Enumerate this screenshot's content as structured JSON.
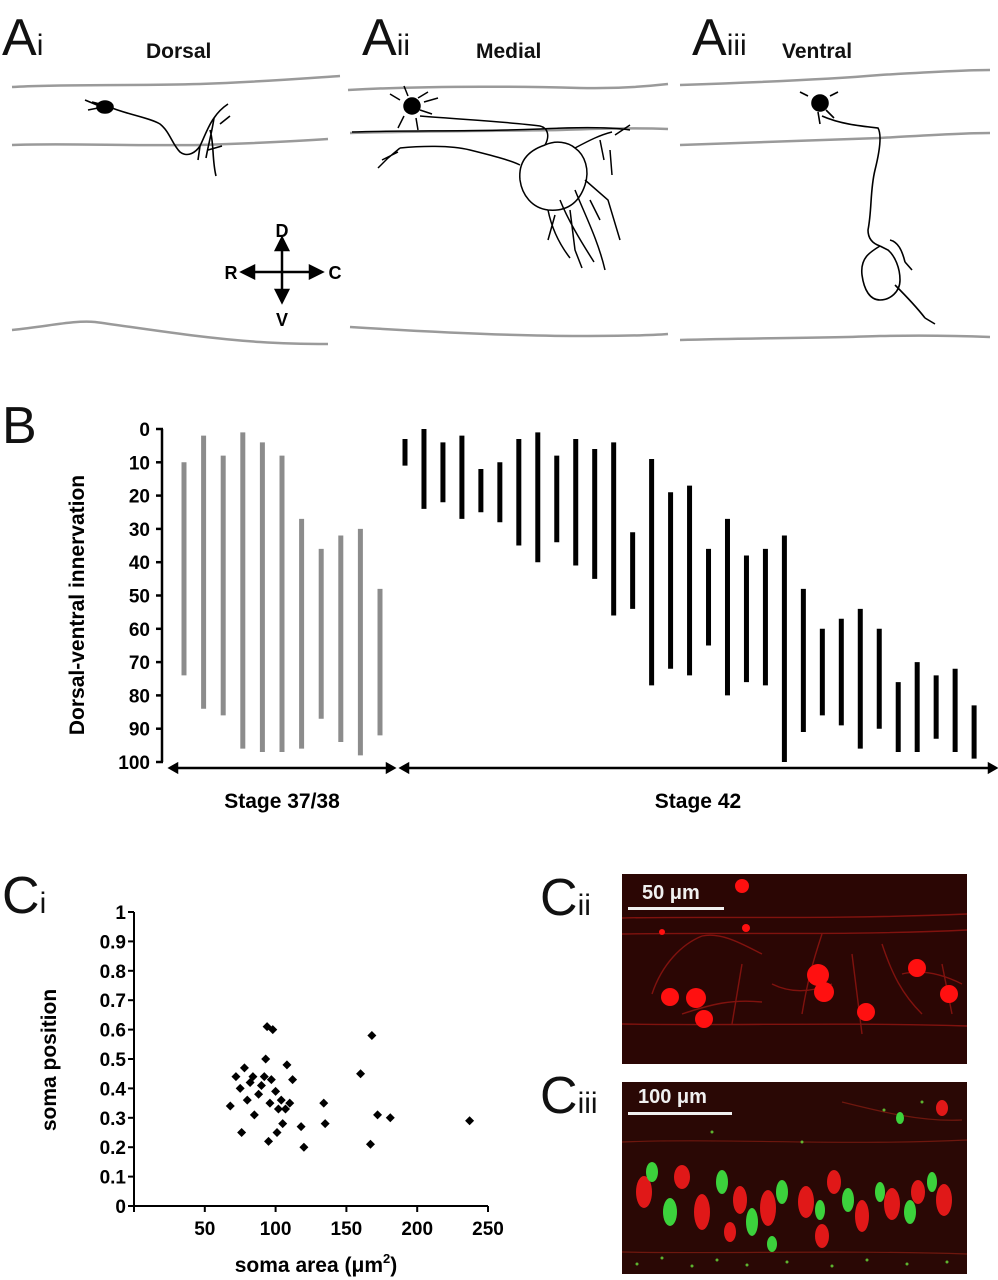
{
  "panel_a": {
    "letters": [
      {
        "main": "A",
        "sub": "i"
      },
      {
        "main": "A",
        "sub": "ii"
      },
      {
        "main": "A",
        "sub": "iii"
      }
    ],
    "titles": [
      "Dorsal",
      "Medial",
      "Ventral"
    ],
    "compass": {
      "up": "D",
      "down": "V",
      "left": "R",
      "right": "C"
    },
    "colors": {
      "boundary": "#9a9a9a",
      "neuron": "#000000"
    }
  },
  "panel_b": {
    "letter": "B",
    "ylabel": "Dorsal-ventral innervation",
    "group_labels": [
      "Stage 37/38",
      "Stage 42"
    ],
    "colors": {
      "stage_37_38": "#8c8c8c",
      "stage_42": "#000000"
    }
  },
  "panel_c": {
    "letters": [
      {
        "main": "C",
        "sub": "i"
      },
      {
        "main": "C",
        "sub": "ii"
      },
      {
        "main": "C",
        "sub": "iii"
      }
    ],
    "scale_labels": [
      "50 μm",
      "100 μm"
    ],
    "xlabel_prefix": "soma area (μm",
    "xlabel_sup": "2",
    "xlabel_suffix": ")",
    "ylabel": "soma position"
  },
  "chart_data": [
    {
      "type": "range-bar",
      "ylabel": "Dorsal-ventral innervation",
      "ylim": [
        0,
        100
      ],
      "y_inverted": true,
      "yticks": [
        "0",
        "10",
        "20",
        "30",
        "40",
        "50",
        "60",
        "70",
        "80",
        "90",
        "100"
      ],
      "series": [
        {
          "name": "Stage 37/38",
          "color": "#8c8c8c",
          "ranges": [
            [
              10,
              74
            ],
            [
              2,
              84
            ],
            [
              8,
              86
            ],
            [
              1,
              96
            ],
            [
              4,
              97
            ],
            [
              8,
              97
            ],
            [
              27,
              96
            ],
            [
              36,
              87
            ],
            [
              32,
              94
            ],
            [
              30,
              98
            ],
            [
              48,
              92
            ]
          ]
        },
        {
          "name": "Stage 42",
          "color": "#000000",
          "ranges": [
            [
              3,
              11
            ],
            [
              0,
              24
            ],
            [
              4,
              22
            ],
            [
              2,
              27
            ],
            [
              12,
              25
            ],
            [
              10,
              28
            ],
            [
              3,
              35
            ],
            [
              1,
              40
            ],
            [
              8,
              34
            ],
            [
              3,
              41
            ],
            [
              6,
              45
            ],
            [
              4,
              56
            ],
            [
              31,
              54
            ],
            [
              9,
              77
            ],
            [
              19,
              72
            ],
            [
              17,
              74
            ],
            [
              36,
              65
            ],
            [
              27,
              80
            ],
            [
              38,
              76
            ],
            [
              36,
              77
            ],
            [
              32,
              100
            ],
            [
              48,
              91
            ],
            [
              60,
              86
            ],
            [
              57,
              89
            ],
            [
              54,
              96
            ],
            [
              60,
              90
            ],
            [
              76,
              97
            ],
            [
              70,
              97
            ],
            [
              74,
              93
            ],
            [
              72,
              97
            ],
            [
              83,
              99
            ]
          ]
        }
      ]
    },
    {
      "type": "scatter",
      "xlabel": "soma area (μm²)",
      "ylabel": "soma position",
      "xlim": [
        0,
        250
      ],
      "ylim": [
        0,
        1
      ],
      "xticks": [
        "50",
        "100",
        "150",
        "200",
        "250"
      ],
      "yticks": [
        "0",
        "0.1",
        "0.2",
        "0.3",
        "0.4",
        "0.5",
        "0.6",
        "0.7",
        "0.8",
        "0.9",
        "1"
      ],
      "points": [
        [
          68,
          0.34
        ],
        [
          72,
          0.44
        ],
        [
          75,
          0.4
        ],
        [
          76,
          0.25
        ],
        [
          78,
          0.47
        ],
        [
          80,
          0.36
        ],
        [
          82,
          0.42
        ],
        [
          84,
          0.44
        ],
        [
          85,
          0.31
        ],
        [
          88,
          0.38
        ],
        [
          90,
          0.41
        ],
        [
          92,
          0.44
        ],
        [
          93,
          0.5
        ],
        [
          94,
          0.61
        ],
        [
          95,
          0.22
        ],
        [
          96,
          0.35
        ],
        [
          97,
          0.43
        ],
        [
          98,
          0.6
        ],
        [
          100,
          0.39
        ],
        [
          101,
          0.25
        ],
        [
          102,
          0.33
        ],
        [
          104,
          0.36
        ],
        [
          105,
          0.28
        ],
        [
          107,
          0.33
        ],
        [
          108,
          0.48
        ],
        [
          110,
          0.35
        ],
        [
          112,
          0.43
        ],
        [
          118,
          0.27
        ],
        [
          120,
          0.2
        ],
        [
          134,
          0.35
        ],
        [
          135,
          0.28
        ],
        [
          160,
          0.45
        ],
        [
          167,
          0.21
        ],
        [
          168,
          0.58
        ],
        [
          172,
          0.31
        ],
        [
          181,
          0.3
        ],
        [
          237,
          0.29
        ]
      ]
    }
  ]
}
